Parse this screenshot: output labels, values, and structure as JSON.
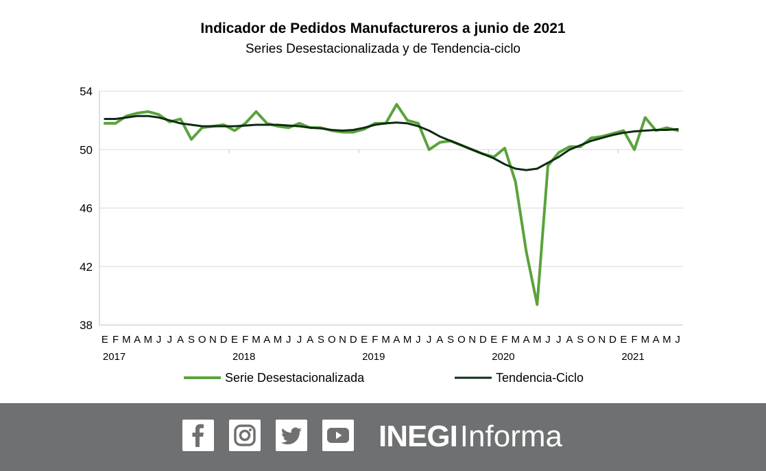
{
  "chart_data": {
    "type": "line",
    "title": "Indicador de Pedidos Manufactureros a junio de 2021",
    "subtitle": "Series Desestacionalizada y de Tendencia-ciclo",
    "xlabel": "",
    "ylabel": "",
    "ylim": [
      38,
      54
    ],
    "yticks": [
      "38",
      "42",
      "46",
      "50",
      "54"
    ],
    "grid": true,
    "legend_position": "bottom",
    "month_labels": [
      "E",
      "F",
      "M",
      "A",
      "M",
      "J",
      "J",
      "A",
      "S",
      "O",
      "N",
      "D",
      "E",
      "F",
      "M",
      "A",
      "M",
      "J",
      "J",
      "A",
      "S",
      "O",
      "N",
      "D",
      "E",
      "F",
      "M",
      "A",
      "M",
      "J",
      "J",
      "A",
      "S",
      "O",
      "N",
      "D",
      "E",
      "F",
      "M",
      "A",
      "M",
      "J",
      "J",
      "A",
      "S",
      "O",
      "N",
      "D",
      "E",
      "F",
      "M",
      "A",
      "M",
      "J"
    ],
    "year_labels": [
      {
        "label": "2017",
        "index": 0
      },
      {
        "label": "2018",
        "index": 12
      },
      {
        "label": "2019",
        "index": 24
      },
      {
        "label": "2020",
        "index": 36
      },
      {
        "label": "2021",
        "index": 48
      }
    ],
    "series": [
      {
        "name": "Serie Desestacionalizada",
        "color": "#5aa33c",
        "values": [
          51.8,
          51.8,
          52.3,
          52.5,
          52.6,
          52.4,
          51.9,
          52.1,
          50.7,
          51.5,
          51.6,
          51.7,
          51.3,
          51.8,
          52.6,
          51.8,
          51.6,
          51.5,
          51.8,
          51.5,
          51.5,
          51.3,
          51.2,
          51.2,
          51.4,
          51.8,
          51.8,
          53.1,
          52.0,
          51.8,
          50.0,
          50.5,
          50.6,
          50.3,
          50.0,
          49.7,
          49.5,
          50.1,
          47.8,
          43.0,
          39.4,
          48.9,
          49.8,
          50.2,
          50.2,
          50.8,
          50.9,
          51.1,
          51.3,
          50.0,
          52.2,
          51.3,
          51.5,
          51.3
        ]
      },
      {
        "name": "Tendencia-Ciclo",
        "color": "#0d2b12",
        "values": [
          52.1,
          52.1,
          52.2,
          52.3,
          52.3,
          52.2,
          52.0,
          51.8,
          51.7,
          51.6,
          51.6,
          51.6,
          51.6,
          51.65,
          51.7,
          51.7,
          51.7,
          51.65,
          51.6,
          51.5,
          51.45,
          51.35,
          51.3,
          51.35,
          51.5,
          51.7,
          51.8,
          51.85,
          51.8,
          51.6,
          51.3,
          50.9,
          50.6,
          50.3,
          50.0,
          49.7,
          49.4,
          49.0,
          48.7,
          48.6,
          48.7,
          49.1,
          49.5,
          50.0,
          50.3,
          50.6,
          50.8,
          51.0,
          51.15,
          51.25,
          51.3,
          51.35,
          51.35,
          51.4
        ]
      }
    ]
  },
  "footer": {
    "background": "#6e7072",
    "social_icons": [
      "facebook-icon",
      "instagram-icon",
      "twitter-icon",
      "youtube-icon"
    ],
    "brand_bold": "INEGI",
    "brand_regular": "Informa"
  }
}
